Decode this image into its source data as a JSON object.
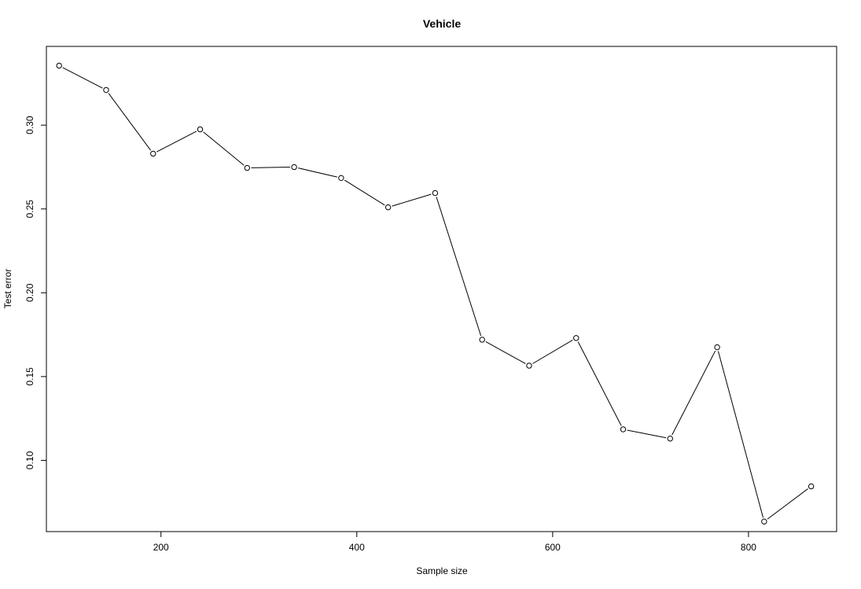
{
  "chart_data": {
    "type": "line",
    "title": "Vehicle",
    "xlabel": "Sample size",
    "ylabel": "Test error",
    "xlim": [
      83,
      890
    ],
    "ylim": [
      0.0575,
      0.347
    ],
    "x_ticks": [
      200,
      400,
      600,
      800
    ],
    "y_ticks": [
      0.1,
      0.15,
      0.2,
      0.25,
      0.3
    ],
    "x_tick_labels": [
      "200",
      "400",
      "600",
      "800"
    ],
    "y_tick_labels": [
      "0.10",
      "0.15",
      "0.20",
      "0.25",
      "0.30"
    ],
    "grid": false,
    "series": [
      {
        "x": [
          96,
          144,
          192,
          240,
          288,
          336,
          384,
          432,
          480,
          528,
          576,
          624,
          672,
          720,
          768,
          816,
          864
        ],
        "y": [
          0.3355,
          0.321,
          0.283,
          0.2975,
          0.2745,
          0.275,
          0.2685,
          0.251,
          0.2595,
          0.172,
          0.1565,
          0.173,
          0.1185,
          0.113,
          0.1675,
          0.0635,
          0.0845
        ]
      }
    ]
  }
}
